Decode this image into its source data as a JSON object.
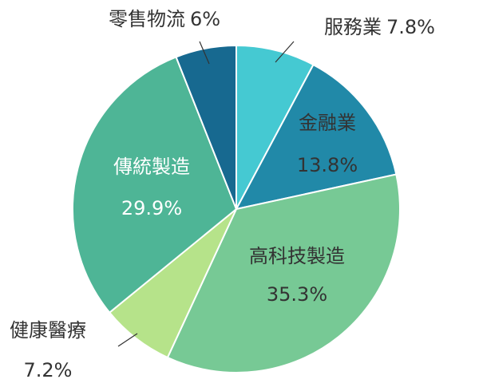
{
  "chart_data": {
    "type": "pie",
    "categories": [
      "服務業",
      "金融業",
      "高科技製造",
      "健康醫療",
      "傳統製造",
      "零售物流"
    ],
    "values": [
      7.8,
      13.8,
      35.3,
      7.2,
      29.9,
      6
    ],
    "value_labels": [
      "7.8%",
      "13.8%",
      "35.3%",
      "7.2%",
      "29.9%",
      "6%"
    ],
    "colors": [
      "#45c9d2",
      "#2189a8",
      "#77c995",
      "#b6e38a",
      "#4eb596",
      "#176990"
    ]
  }
}
